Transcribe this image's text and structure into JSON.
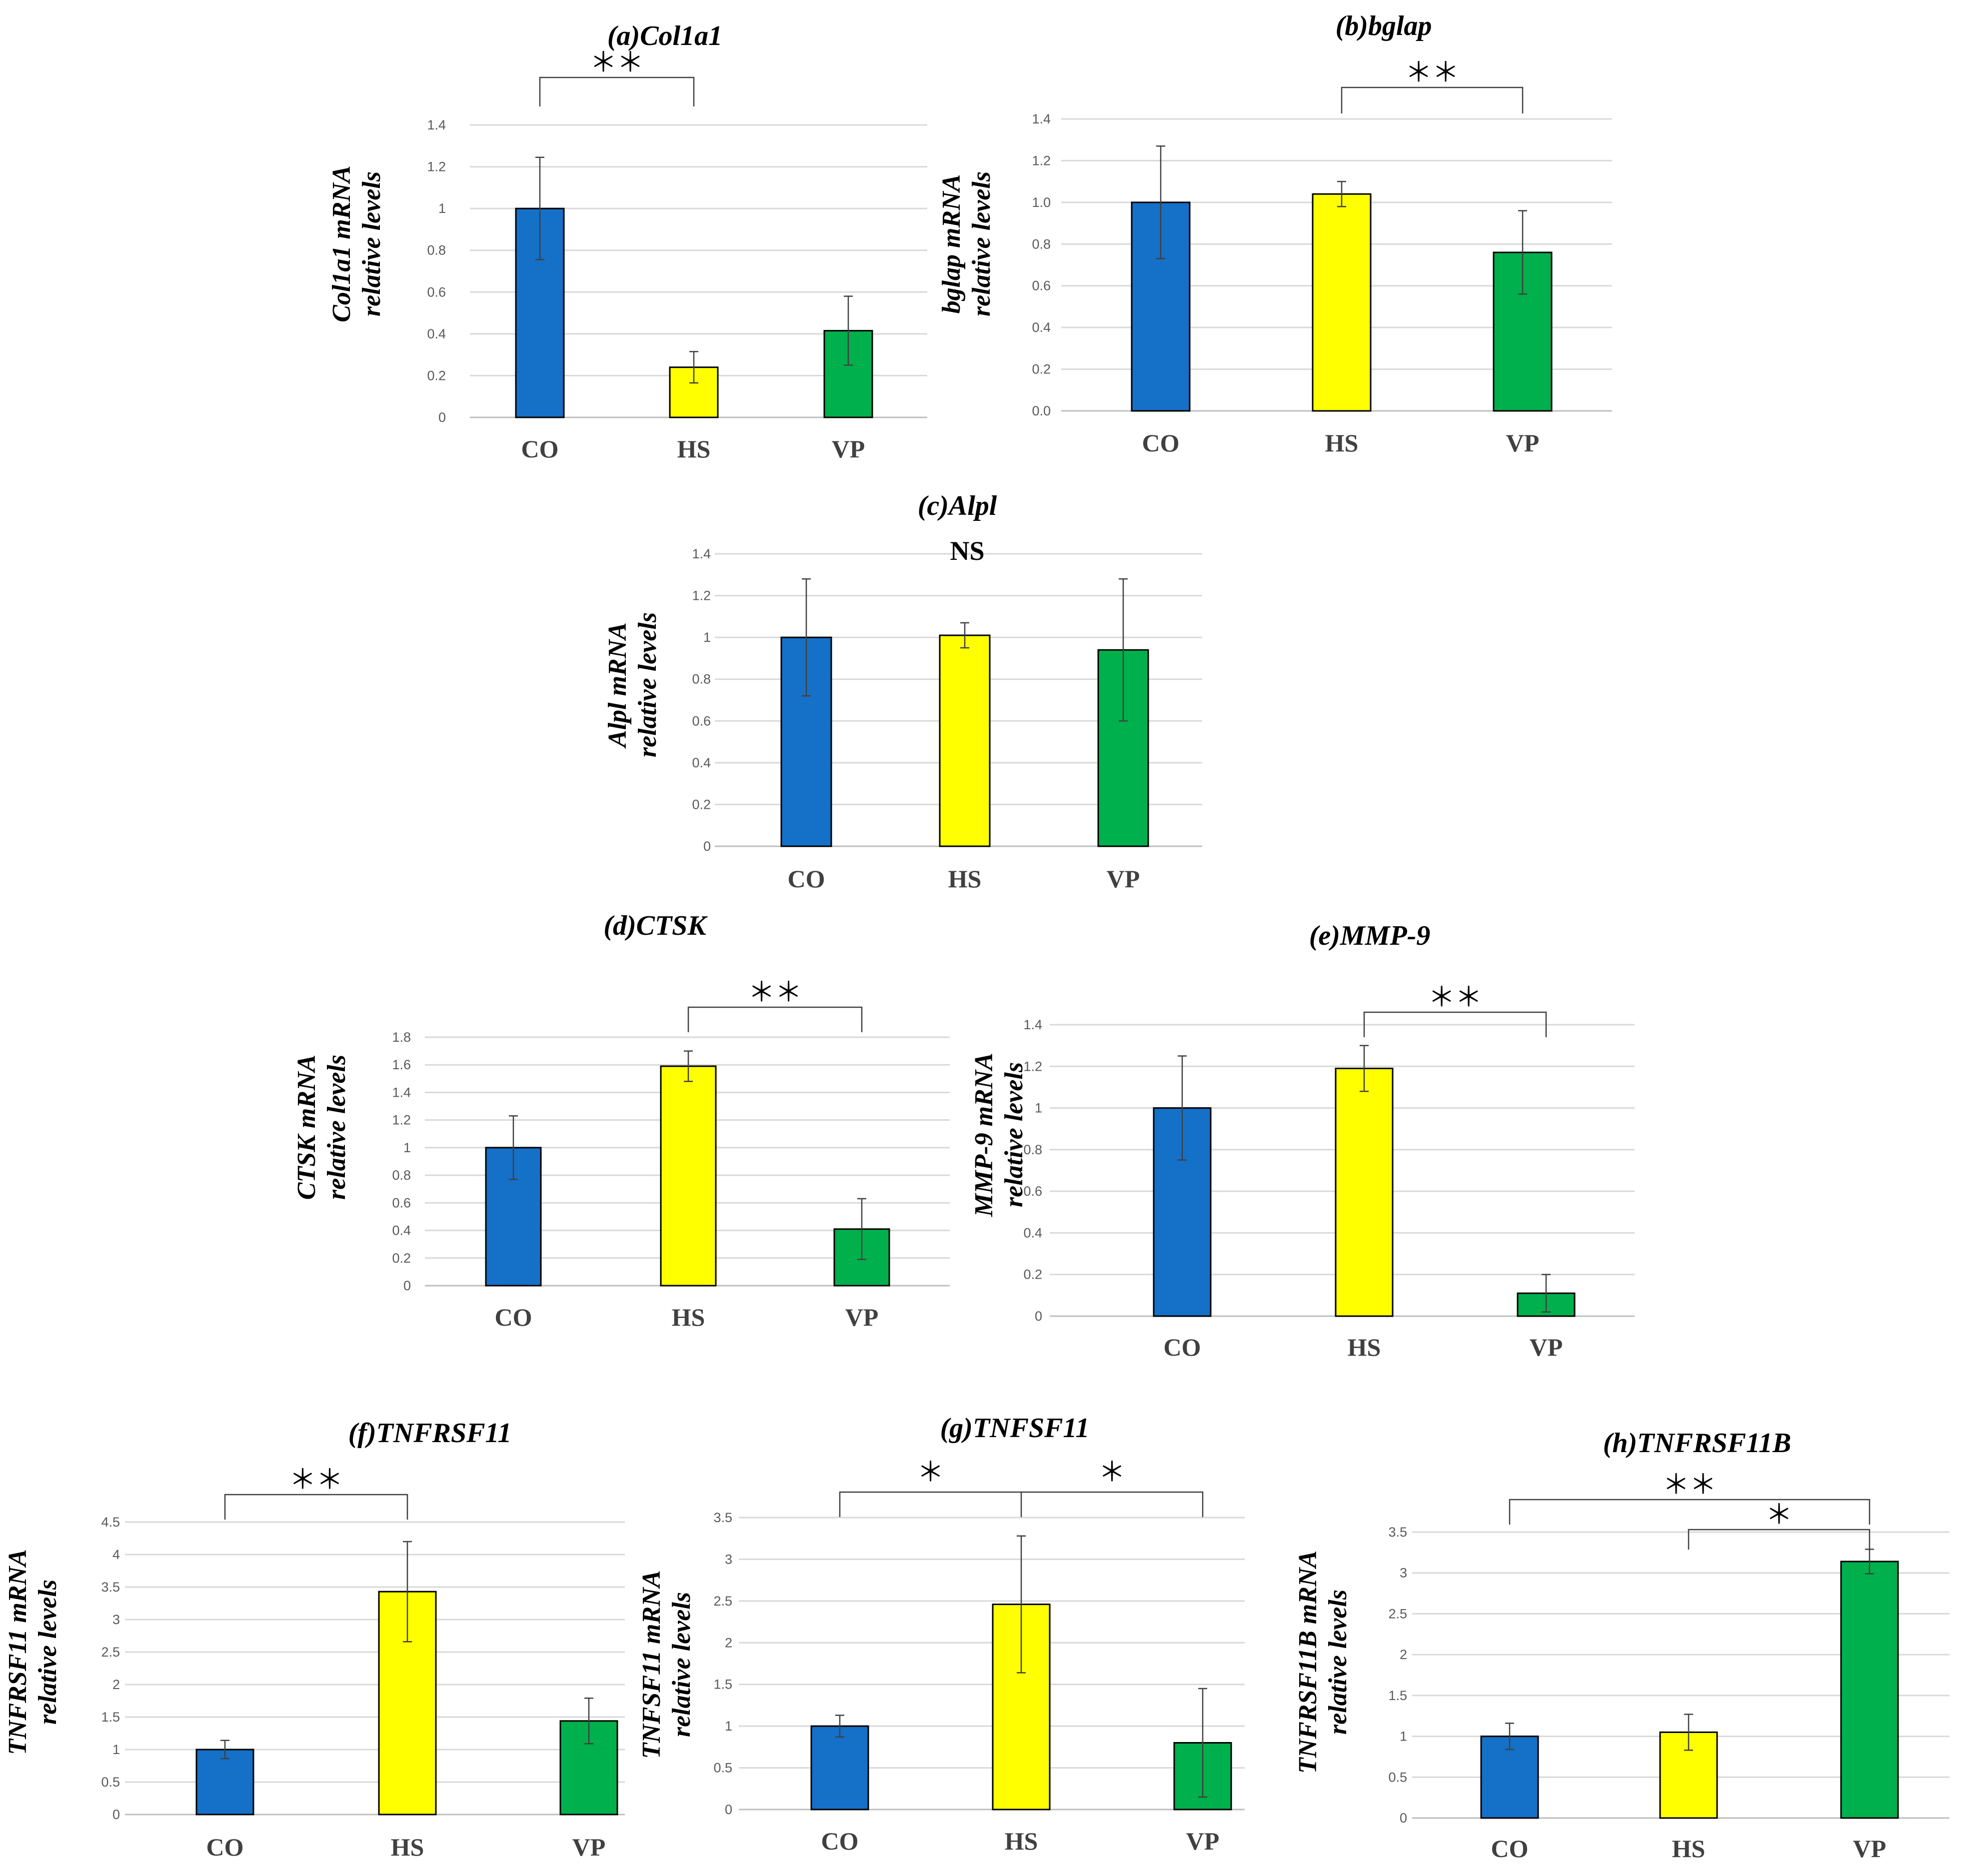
{
  "colors": {
    "CO": "#1570c8",
    "HS": "#ffff00",
    "VP": "#00b04c"
  },
  "chart_data": [
    {
      "id": "a",
      "type": "bar",
      "title": "(a)Col1a1",
      "ylabel_line1": "Col1a1 mRNA",
      "ylabel_line2": "relative levels",
      "categories": [
        "CO",
        "HS",
        "VP"
      ],
      "values": [
        1.0,
        0.24,
        0.415
      ],
      "errors": [
        0.245,
        0.075,
        0.165
      ],
      "ylim": [
        0,
        1.4
      ],
      "ticks": [
        "0",
        "0.2",
        "0.4",
        "0.6",
        "0.8",
        "1",
        "1.2",
        "1.4"
      ],
      "significance": [
        {
          "from": 0,
          "to": 1,
          "label": "＊＊"
        }
      ],
      "note": ""
    },
    {
      "id": "b",
      "type": "bar",
      "title": "(b)bglap",
      "ylabel_line1": "bglap mRNA",
      "ylabel_line2": "relative levels",
      "categories": [
        "CO",
        "HS",
        "VP"
      ],
      "values": [
        1.0,
        1.04,
        0.76
      ],
      "errors": [
        0.27,
        0.06,
        0.2
      ],
      "ylim": [
        0,
        1.4
      ],
      "ticks": [
        "0.0",
        "0.2",
        "0.4",
        "0.6",
        "0.8",
        "1.0",
        "1.2",
        "1.4"
      ],
      "significance": [
        {
          "from": 1,
          "to": 2,
          "label": "＊＊"
        }
      ],
      "note": ""
    },
    {
      "id": "c",
      "type": "bar",
      "title": "(c)Alpl",
      "ylabel_line1": "Alpl mRNA",
      "ylabel_line2": "relative levels",
      "categories": [
        "CO",
        "HS",
        "VP"
      ],
      "values": [
        1.0,
        1.01,
        0.94
      ],
      "errors": [
        0.28,
        0.06,
        0.34
      ],
      "ylim": [
        0,
        1.4
      ],
      "ticks": [
        "0",
        "0.2",
        "0.4",
        "0.6",
        "0.8",
        "1",
        "1.2",
        "1.4"
      ],
      "significance": [],
      "note": "NS"
    },
    {
      "id": "d",
      "type": "bar",
      "title": "(d)CTSK",
      "ylabel_line1": "CTSK mRNA",
      "ylabel_line2": "relative levels",
      "categories": [
        "CO",
        "HS",
        "VP"
      ],
      "values": [
        1.0,
        1.59,
        0.41
      ],
      "errors": [
        0.23,
        0.11,
        0.22
      ],
      "ylim": [
        0,
        1.8
      ],
      "ticks": [
        "0",
        "0.2",
        "0.4",
        "0.6",
        "0.8",
        "1",
        "1.2",
        "1.4",
        "1.6",
        "1.8"
      ],
      "significance": [
        {
          "from": 1,
          "to": 2,
          "label": "＊＊"
        }
      ],
      "note": ""
    },
    {
      "id": "e",
      "type": "bar",
      "title": "(e)MMP-9",
      "ylabel_line1": "MMP-9 mRNA",
      "ylabel_line2": "relative levels",
      "categories": [
        "CO",
        "HS",
        "VP"
      ],
      "values": [
        1.0,
        1.19,
        0.11
      ],
      "errors": [
        0.25,
        0.11,
        0.09
      ],
      "ylim": [
        0,
        1.4
      ],
      "ticks": [
        "0",
        "0.2",
        "0.4",
        "0.6",
        "0.8",
        "1",
        "1.2",
        "1.4"
      ],
      "significance": [
        {
          "from": 1,
          "to": 2,
          "label": "＊＊"
        }
      ],
      "note": ""
    },
    {
      "id": "f",
      "type": "bar",
      "title": "(f)TNFRSF11",
      "ylabel_line1": "TNFRSF11 mRNA",
      "ylabel_line2": "relative levels",
      "categories": [
        "CO",
        "HS",
        "VP"
      ],
      "values": [
        1.0,
        3.43,
        1.44
      ],
      "errors": [
        0.14,
        0.77,
        0.35
      ],
      "ylim": [
        0,
        4.5
      ],
      "ticks": [
        "0",
        "0.5",
        "1",
        "1.5",
        "2",
        "2.5",
        "3",
        "3.5",
        "4",
        "4.5"
      ],
      "significance": [
        {
          "from": 0,
          "to": 1,
          "label": "＊＊"
        }
      ],
      "note": ""
    },
    {
      "id": "g",
      "type": "bar",
      "title": "(g)TNFSF11",
      "ylabel_line1": "TNFSF11 mRNA",
      "ylabel_line2": "relative levels",
      "categories": [
        "CO",
        "HS",
        "VP"
      ],
      "values": [
        1.0,
        2.46,
        0.8
      ],
      "errors": [
        0.13,
        0.82,
        0.65
      ],
      "ylim": [
        0,
        3.5
      ],
      "ticks": [
        "0",
        "0.5",
        "1",
        "1.5",
        "2",
        "2.5",
        "3",
        "3.5"
      ],
      "significance": [
        {
          "from": 0,
          "to": 1,
          "label": "＊"
        },
        {
          "from": 1,
          "to": 2,
          "label": "＊"
        }
      ],
      "note": ""
    },
    {
      "id": "h",
      "type": "bar",
      "title": "(h)TNFRSF11B",
      "ylabel_line1": "TNFRSF11B mRNA",
      "ylabel_line2": "relative levels",
      "categories": [
        "CO",
        "HS",
        "VP"
      ],
      "values": [
        1.0,
        1.05,
        3.14
      ],
      "errors": [
        0.16,
        0.22,
        0.15
      ],
      "ylim": [
        0,
        3.5
      ],
      "ticks": [
        "0",
        "0.5",
        "1",
        "1.5",
        "2",
        "2.5",
        "3",
        "3.5"
      ],
      "significance": [
        {
          "from": 0,
          "to": 2,
          "label": "＊＊"
        },
        {
          "from": 1,
          "to": 2,
          "label": "＊"
        }
      ],
      "note": ""
    }
  ]
}
